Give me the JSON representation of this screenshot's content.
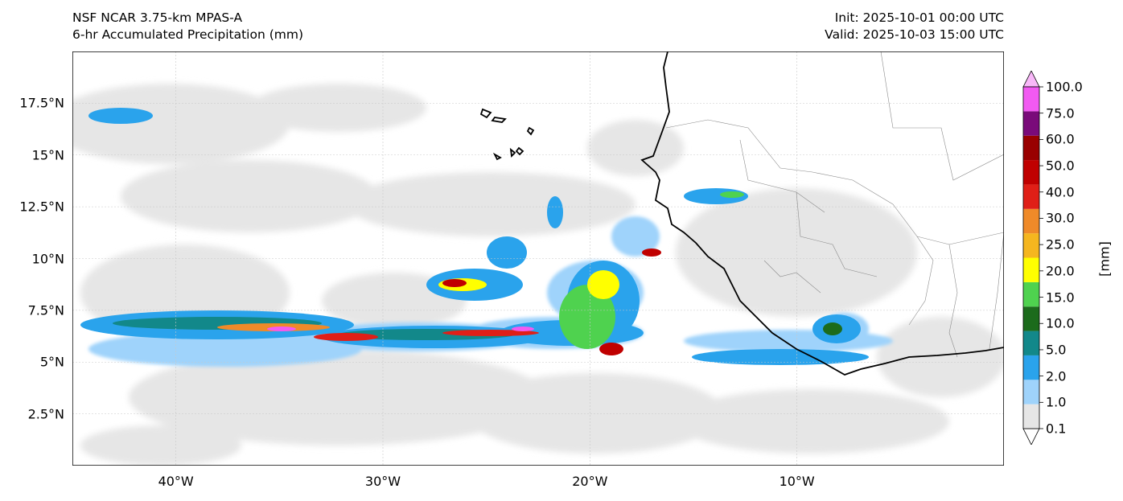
{
  "header": {
    "left_line1": "NSF NCAR 3.75-km MPAS-A",
    "left_line2": "6-hr Accumulated Precipitation (mm)",
    "right_line1": "Init: 2025-10-01 00:00 UTC",
    "right_line2": "Valid: 2025-10-03 15:00 UTC"
  },
  "map": {
    "lon_range": [
      -45,
      0
    ],
    "lat_range": [
      0,
      20
    ],
    "lat_ticks": [
      {
        "value": 2.5,
        "label": "2.5°N"
      },
      {
        "value": 5,
        "label": "5°N"
      },
      {
        "value": 7.5,
        "label": "7.5°N"
      },
      {
        "value": 10,
        "label": "10°N"
      },
      {
        "value": 12.5,
        "label": "12.5°N"
      },
      {
        "value": 15,
        "label": "15°N"
      },
      {
        "value": 17.5,
        "label": "17.5°N"
      }
    ],
    "lon_ticks": [
      {
        "value": -40,
        "label": "40°W"
      },
      {
        "value": -30,
        "label": "30°W"
      },
      {
        "value": -20,
        "label": "20°W"
      },
      {
        "value": -10,
        "label": "10°W"
      }
    ],
    "gridlines": true
  },
  "colorbar": {
    "unit_label": "[mm]",
    "levels": [
      "0.1",
      "1.0",
      "2.0",
      "5.0",
      "10.0",
      "15.0",
      "20.0",
      "25.0",
      "30.0",
      "40.0",
      "50.0",
      "60.0",
      "75.0",
      "100.0"
    ],
    "colors": [
      "#e6e6e6",
      "#9fd3fb",
      "#2aa3ec",
      "#12888a",
      "#1c6b1c",
      "#4fd24f",
      "#ffff00",
      "#f5b61f",
      "#ef8a29",
      "#e01f17",
      "#c00000",
      "#990000",
      "#7a0a7a",
      "#f25af2"
    ],
    "extend_low_color": "#ffffff",
    "extend_high_color": "#f9b8f9"
  }
}
